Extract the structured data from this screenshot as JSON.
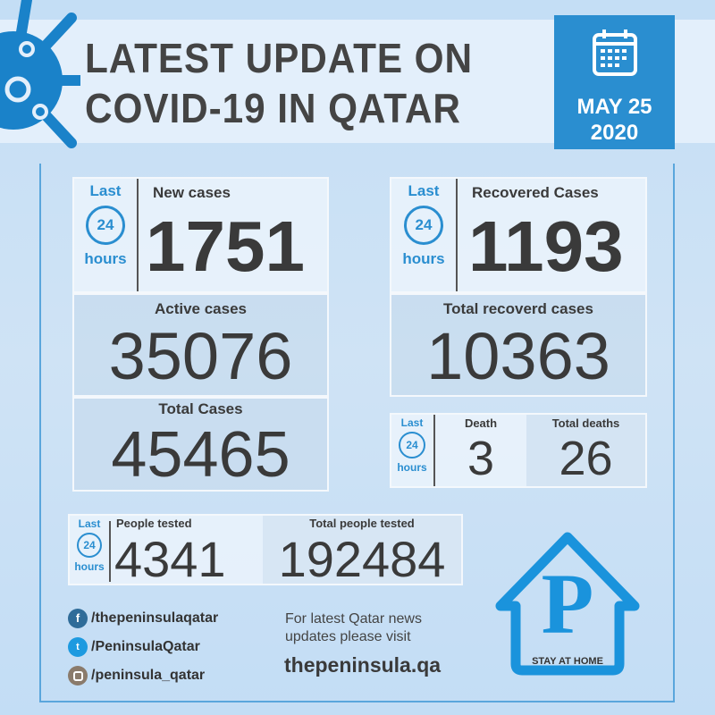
{
  "header": {
    "title_line1": "LATEST UPDATE ON",
    "title_line2": "COVID-19 IN QATAR",
    "date_line1": "MAY 25",
    "date_line2": "2020"
  },
  "last24": {
    "last": "Last",
    "number": "24",
    "hours": "hours"
  },
  "new_cases": {
    "label": "New cases",
    "value": "1751"
  },
  "active_cases": {
    "label": "Active cases",
    "value": "35076"
  },
  "total_cases": {
    "label": "Total Cases",
    "value": "45465"
  },
  "recovered": {
    "label": "Recovered Cases",
    "value": "1193"
  },
  "total_recovered": {
    "label": "Total recoverd cases",
    "value": "10363"
  },
  "death": {
    "label": "Death",
    "value": "3"
  },
  "total_deaths": {
    "label": "Total deaths",
    "value": "26"
  },
  "people_tested": {
    "label": "People tested",
    "value": "4341"
  },
  "total_tested": {
    "label": "Total people tested",
    "value": "192484"
  },
  "social": [
    {
      "icon": "facebook-icon",
      "handle": "/thepeninsulaqatar",
      "color": "#2f6c99"
    },
    {
      "icon": "twitter-icon",
      "handle": "/PeninsulaQatar",
      "color": "#1d9ae0"
    },
    {
      "icon": "instagram-icon",
      "handle": "/peninsula_qatar",
      "color": "#8a7b6c"
    }
  ],
  "visit": {
    "line1": "For latest Qatar news",
    "line2": "updates please visit",
    "site": "thepeninsula.qa"
  },
  "logo": {
    "letter": "P",
    "caption": "STAY AT HOME"
  },
  "colors": {
    "accent": "#2a8ed0",
    "text": "#414141"
  }
}
